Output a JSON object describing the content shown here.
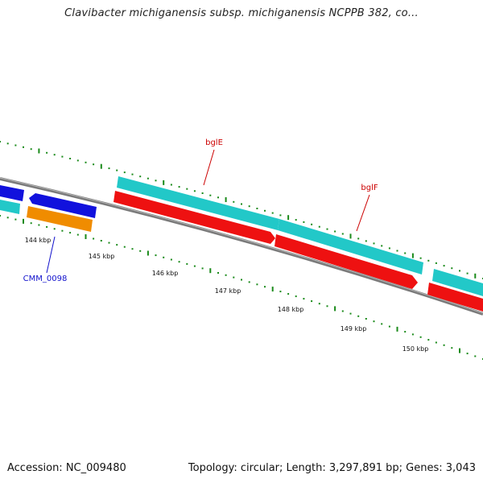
{
  "title": "Clavibacter michiganensis subsp. michiganensis NCPPB 382, co...",
  "footer": {
    "accession": "Accession: NC_009480",
    "summary": "Topology: circular; Length: 3,297,891 bp; Genes: 3,043"
  },
  "colors": {
    "backbone": "#7a7a7a",
    "cds_forward": "#22c8c8",
    "cds_reverse": "#ee1111",
    "gene_blue": "#1111dd",
    "gene_orange": "#f08c00",
    "tick": "#1a8a1a",
    "label_red": "#cc0000",
    "label_blue": "#1111cc"
  },
  "scale_labels": [
    "144 kbp",
    "145 kbp",
    "146 kbp",
    "147 kbp",
    "148 kbp",
    "149 kbp",
    "150 kbp"
  ],
  "gene_labels": {
    "bglE": "bglE",
    "bglF": "bglF",
    "cmm0098": "CMM_0098"
  }
}
